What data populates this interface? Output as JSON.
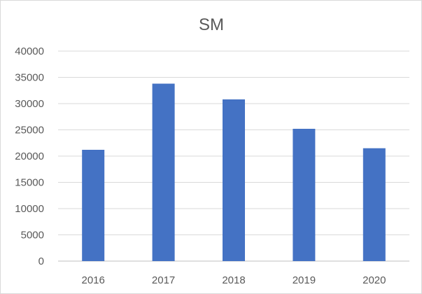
{
  "chart_data": {
    "type": "bar",
    "title": "SM",
    "categories": [
      "2016",
      "2017",
      "2018",
      "2019",
      "2020"
    ],
    "values": [
      21200,
      33800,
      30800,
      25200,
      21500
    ],
    "ylim": [
      0,
      40000
    ],
    "yticks": [
      0,
      5000,
      10000,
      15000,
      20000,
      25000,
      30000,
      35000,
      40000
    ],
    "grid": true,
    "legend": "none",
    "bar_color": "#4472c4"
  }
}
